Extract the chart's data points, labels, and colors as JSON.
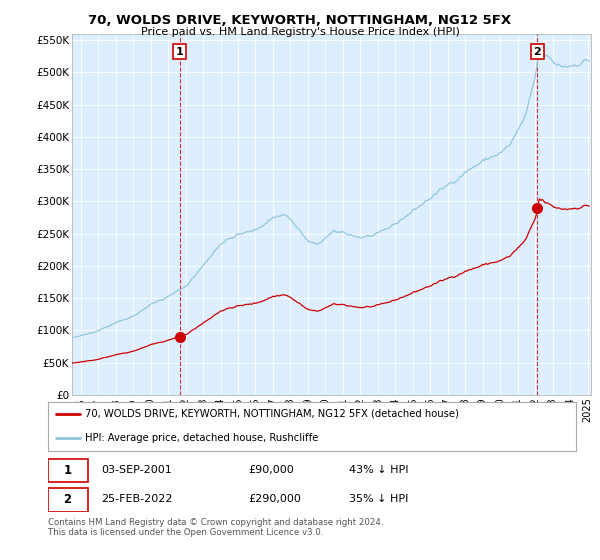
{
  "title": "70, WOLDS DRIVE, KEYWORTH, NOTTINGHAM, NG12 5FX",
  "subtitle": "Price paid vs. HM Land Registry's House Price Index (HPI)",
  "legend_line1": "70, WOLDS DRIVE, KEYWORTH, NOTTINGHAM, NG12 5FX (detached house)",
  "legend_line2": "HPI: Average price, detached house, Rushcliffe",
  "footnote": "Contains HM Land Registry data © Crown copyright and database right 2024.\nThis data is licensed under the Open Government Licence v3.0.",
  "sale1_date": "03-SEP-2001",
  "sale1_price": "£90,000",
  "sale1_pct": "43% ↓ HPI",
  "sale2_date": "25-FEB-2022",
  "sale2_price": "£290,000",
  "sale2_pct": "35% ↓ HPI",
  "hpi_color": "#92c5de",
  "property_color": "#cc0000",
  "marker_color": "#cc0000",
  "bg_color": "#ffffff",
  "chart_bg": "#ddeeff",
  "grid_color": "#ffffff",
  "ylim": [
    0,
    560000
  ],
  "yticks": [
    0,
    50000,
    100000,
    150000,
    200000,
    250000,
    300000,
    350000,
    400000,
    450000,
    500000,
    550000
  ],
  "ytick_labels": [
    "£0",
    "£50K",
    "£100K",
    "£150K",
    "£200K",
    "£250K",
    "£300K",
    "£350K",
    "£400K",
    "£450K",
    "£500K",
    "£550K"
  ],
  "sale1_x": 2001.67,
  "sale1_y": 90000,
  "sale2_x": 2022.12,
  "sale2_y": 290000,
  "xlim_left": 1995.5,
  "xlim_right": 2025.2
}
